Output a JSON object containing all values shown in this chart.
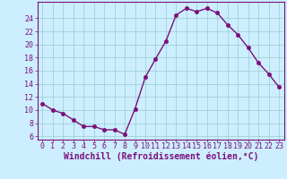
{
  "x": [
    0,
    1,
    2,
    3,
    4,
    5,
    6,
    7,
    8,
    9,
    10,
    11,
    12,
    13,
    14,
    15,
    16,
    17,
    18,
    19,
    20,
    21,
    22,
    23
  ],
  "y": [
    11.0,
    10.0,
    9.5,
    8.5,
    7.5,
    7.5,
    7.0,
    7.0,
    6.3,
    10.2,
    15.0,
    17.8,
    20.5,
    24.5,
    25.5,
    25.0,
    25.5,
    24.8,
    23.0,
    21.5,
    19.5,
    17.2,
    15.5,
    13.5
  ],
  "line_color": "#7B107B",
  "marker": "o",
  "marker_color": "#7B107B",
  "bg_color": "#cceeff",
  "grid_color": "#99cccc",
  "xlabel": "Windchill (Refroidissement éolien,°C)",
  "ylim": [
    5.5,
    26.5
  ],
  "xlim": [
    -0.5,
    23.5
  ],
  "yticks": [
    6,
    8,
    10,
    12,
    14,
    16,
    18,
    20,
    22,
    24
  ],
  "xticks": [
    0,
    1,
    2,
    3,
    4,
    5,
    6,
    7,
    8,
    9,
    10,
    11,
    12,
    13,
    14,
    15,
    16,
    17,
    18,
    19,
    20,
    21,
    22,
    23
  ],
  "axis_color": "#7B107B",
  "label_fontsize": 7,
  "tick_fontsize": 6,
  "marker_size": 3,
  "line_width": 1.0
}
